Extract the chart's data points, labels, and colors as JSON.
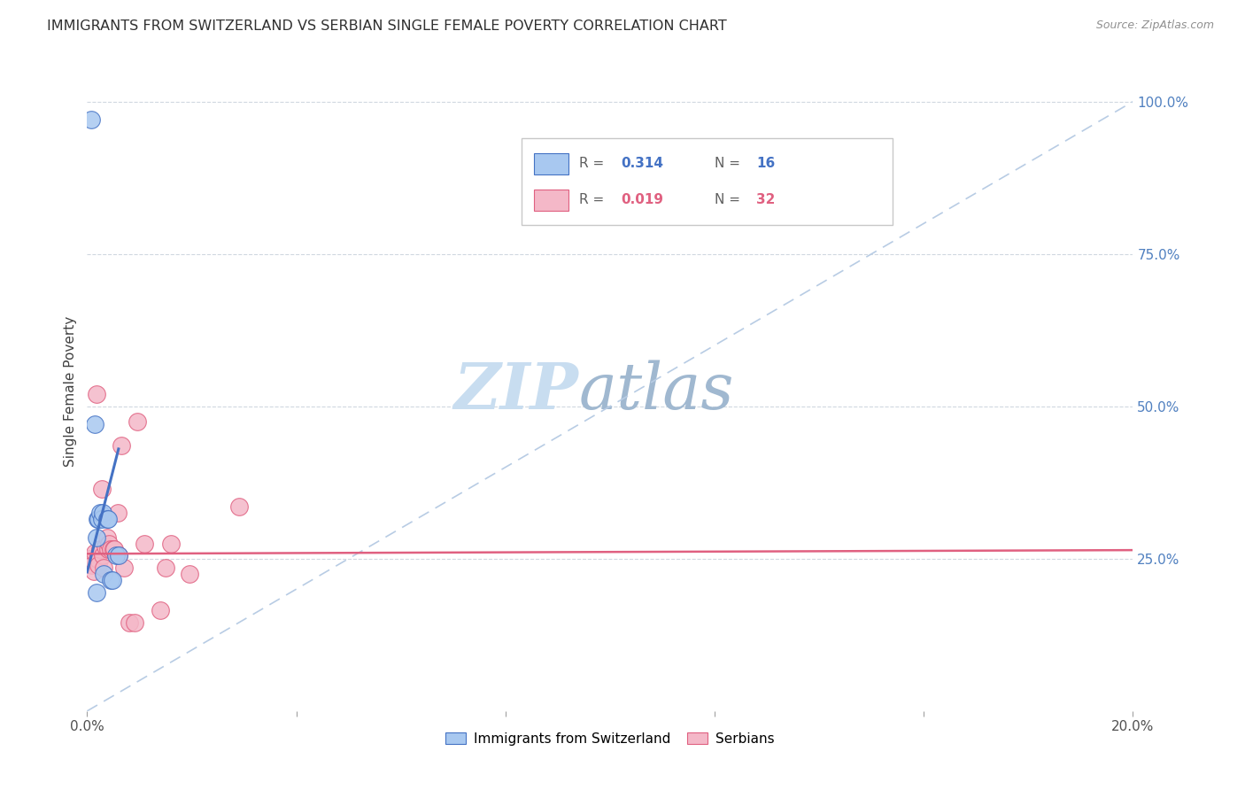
{
  "title": "IMMIGRANTS FROM SWITZERLAND VS SERBIAN SINGLE FEMALE POVERTY CORRELATION CHART",
  "source": "Source: ZipAtlas.com",
  "ylabel": "Single Female Poverty",
  "legend_label1": "Immigrants from Switzerland",
  "legend_label2": "Serbians",
  "r1": "0.314",
  "n1": "16",
  "r2": "0.019",
  "n2": "32",
  "color_swiss": "#a8c8f0",
  "color_swiss_line": "#4472c4",
  "color_serbian": "#f4b8c8",
  "color_serbian_line": "#e06080",
  "color_diag": "#b8cce4",
  "background": "#ffffff",
  "grid_color": "#d0d8e0",
  "title_color": "#303030",
  "right_label_color": "#5080c0",
  "watermark_zip_color": "#c8ddf0",
  "watermark_atlas_color": "#a0b8d0",
  "swiss_x": [
    0.0008,
    0.0015,
    0.0018,
    0.002,
    0.0022,
    0.0025,
    0.0028,
    0.003,
    0.0032,
    0.0038,
    0.004,
    0.0045,
    0.0048,
    0.0055,
    0.006,
    0.0018
  ],
  "swiss_y": [
    0.97,
    0.47,
    0.285,
    0.315,
    0.315,
    0.325,
    0.315,
    0.325,
    0.225,
    0.315,
    0.315,
    0.215,
    0.215,
    0.255,
    0.255,
    0.195
  ],
  "serbian_x": [
    0.0005,
    0.0008,
    0.001,
    0.0012,
    0.0015,
    0.0018,
    0.002,
    0.0022,
    0.0025,
    0.0028,
    0.003,
    0.0032,
    0.0035,
    0.0038,
    0.004,
    0.0042,
    0.0045,
    0.005,
    0.0052,
    0.0058,
    0.006,
    0.0065,
    0.007,
    0.008,
    0.009,
    0.011,
    0.014,
    0.015,
    0.016,
    0.0195,
    0.029,
    0.0095
  ],
  "serbian_y": [
    0.25,
    0.25,
    0.24,
    0.23,
    0.26,
    0.52,
    0.25,
    0.24,
    0.265,
    0.365,
    0.255,
    0.235,
    0.27,
    0.285,
    0.265,
    0.275,
    0.265,
    0.265,
    0.265,
    0.325,
    0.255,
    0.435,
    0.235,
    0.145,
    0.145,
    0.275,
    0.165,
    0.235,
    0.275,
    0.225,
    0.335,
    0.475
  ],
  "xmin": 0.0,
  "xmax": 0.2,
  "ymin": 0.0,
  "ymax": 1.05,
  "xticks": [
    0.0,
    0.04,
    0.08,
    0.12,
    0.16,
    0.2
  ],
  "yticks": [
    0.25,
    0.5,
    0.75,
    1.0
  ],
  "figsize": [
    14.06,
    8.92
  ],
  "dpi": 100
}
